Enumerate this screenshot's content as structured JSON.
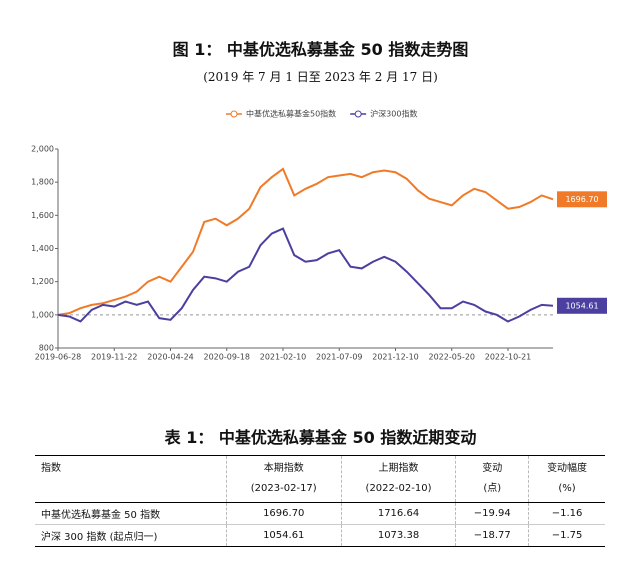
{
  "figure": {
    "title": "图 1： 中基优选私募基金 50 指数走势图",
    "subtitle": "(2019 年 7 月 1 日至 2023 年 2 月 17 日)",
    "chart_data": {
      "type": "line",
      "categories": [
        "2019-06-28",
        null,
        null,
        null,
        null,
        "2019-11-22",
        null,
        null,
        null,
        null,
        "2020-04-24",
        null,
        null,
        null,
        null,
        "2020-09-18",
        null,
        null,
        null,
        null,
        "2021-02-10",
        null,
        null,
        null,
        null,
        "2021-07-09",
        null,
        null,
        null,
        null,
        "2021-12-10",
        null,
        null,
        null,
        null,
        "2022-05-20",
        null,
        null,
        null,
        null,
        "2022-10-21",
        null,
        null,
        null,
        null
      ],
      "series": [
        {
          "name": "中基优选私募基金50指数",
          "color": "#f07a28",
          "values": [
            1000,
            1010,
            1040,
            1060,
            1070,
            1090,
            1110,
            1140,
            1200,
            1230,
            1200,
            1290,
            1380,
            1560,
            1580,
            1540,
            1580,
            1640,
            1770,
            1830,
            1880,
            1720,
            1760,
            1790,
            1830,
            1840,
            1850,
            1830,
            1860,
            1870,
            1860,
            1820,
            1750,
            1700,
            1680,
            1660,
            1720,
            1760,
            1740,
            1690,
            1640,
            1650,
            1680,
            1720,
            1696.7
          ],
          "value_labels": [
            null,
            null,
            null,
            null,
            null,
            null,
            null,
            null,
            null,
            null,
            null,
            null,
            null,
            null,
            null,
            null,
            null,
            null,
            null,
            null,
            null,
            null,
            null,
            null,
            null,
            null,
            null,
            null,
            null,
            null,
            null,
            null,
            null,
            null,
            null,
            null,
            null,
            null,
            null,
            null,
            null,
            null,
            null,
            null,
            "1696.70"
          ]
        },
        {
          "name": "沪深300指数",
          "color": "#4b3fa0",
          "values": [
            1000,
            990,
            960,
            1030,
            1060,
            1050,
            1080,
            1060,
            1080,
            980,
            970,
            1040,
            1150,
            1230,
            1220,
            1200,
            1260,
            1290,
            1420,
            1490,
            1520,
            1360,
            1320,
            1330,
            1370,
            1390,
            1290,
            1280,
            1320,
            1350,
            1320,
            1260,
            1190,
            1120,
            1040,
            1040,
            1080,
            1060,
            1020,
            1000,
            960,
            990,
            1030,
            1060,
            1054.61
          ],
          "value_labels": [
            null,
            null,
            null,
            null,
            null,
            null,
            null,
            null,
            null,
            null,
            null,
            null,
            null,
            null,
            null,
            null,
            null,
            null,
            null,
            null,
            null,
            null,
            null,
            null,
            null,
            null,
            null,
            null,
            null,
            null,
            null,
            null,
            null,
            null,
            null,
            null,
            null,
            null,
            null,
            null,
            null,
            null,
            null,
            null,
            "1054.61"
          ]
        }
      ],
      "ylim": [
        800,
        2000
      ],
      "yticks": [
        800,
        {
          "value": 1000,
          "label": "1,000"
        },
        {
          "value": 1200,
          "label": "1,200"
        },
        {
          "value": 1400,
          "label": "1,400"
        },
        {
          "value": 1600,
          "label": "1,600"
        },
        {
          "value": 1800,
          "label": "1,800"
        },
        {
          "value": 2000,
          "label": "2,000"
        }
      ],
      "reference_line": 1000,
      "legend": "top"
    }
  },
  "table": {
    "title": "表 1： 中基优选私募基金 50 指数近期变动",
    "header": [
      [
        "指数"
      ],
      [
        "本期指数",
        "(2023-02-17)"
      ],
      [
        "上期指数",
        "(2022-02-10)"
      ],
      [
        "变动",
        "(点)"
      ],
      [
        "变动幅度",
        "(%)"
      ]
    ],
    "rows": [
      [
        "中基优选私募基金 50 指数",
        "1696.70",
        "1716.64",
        "−19.94",
        "−1.16"
      ],
      [
        "沪深 300 指数 (起点归一)",
        "1054.61",
        "1073.38",
        "−18.77",
        "−1.75"
      ]
    ]
  }
}
